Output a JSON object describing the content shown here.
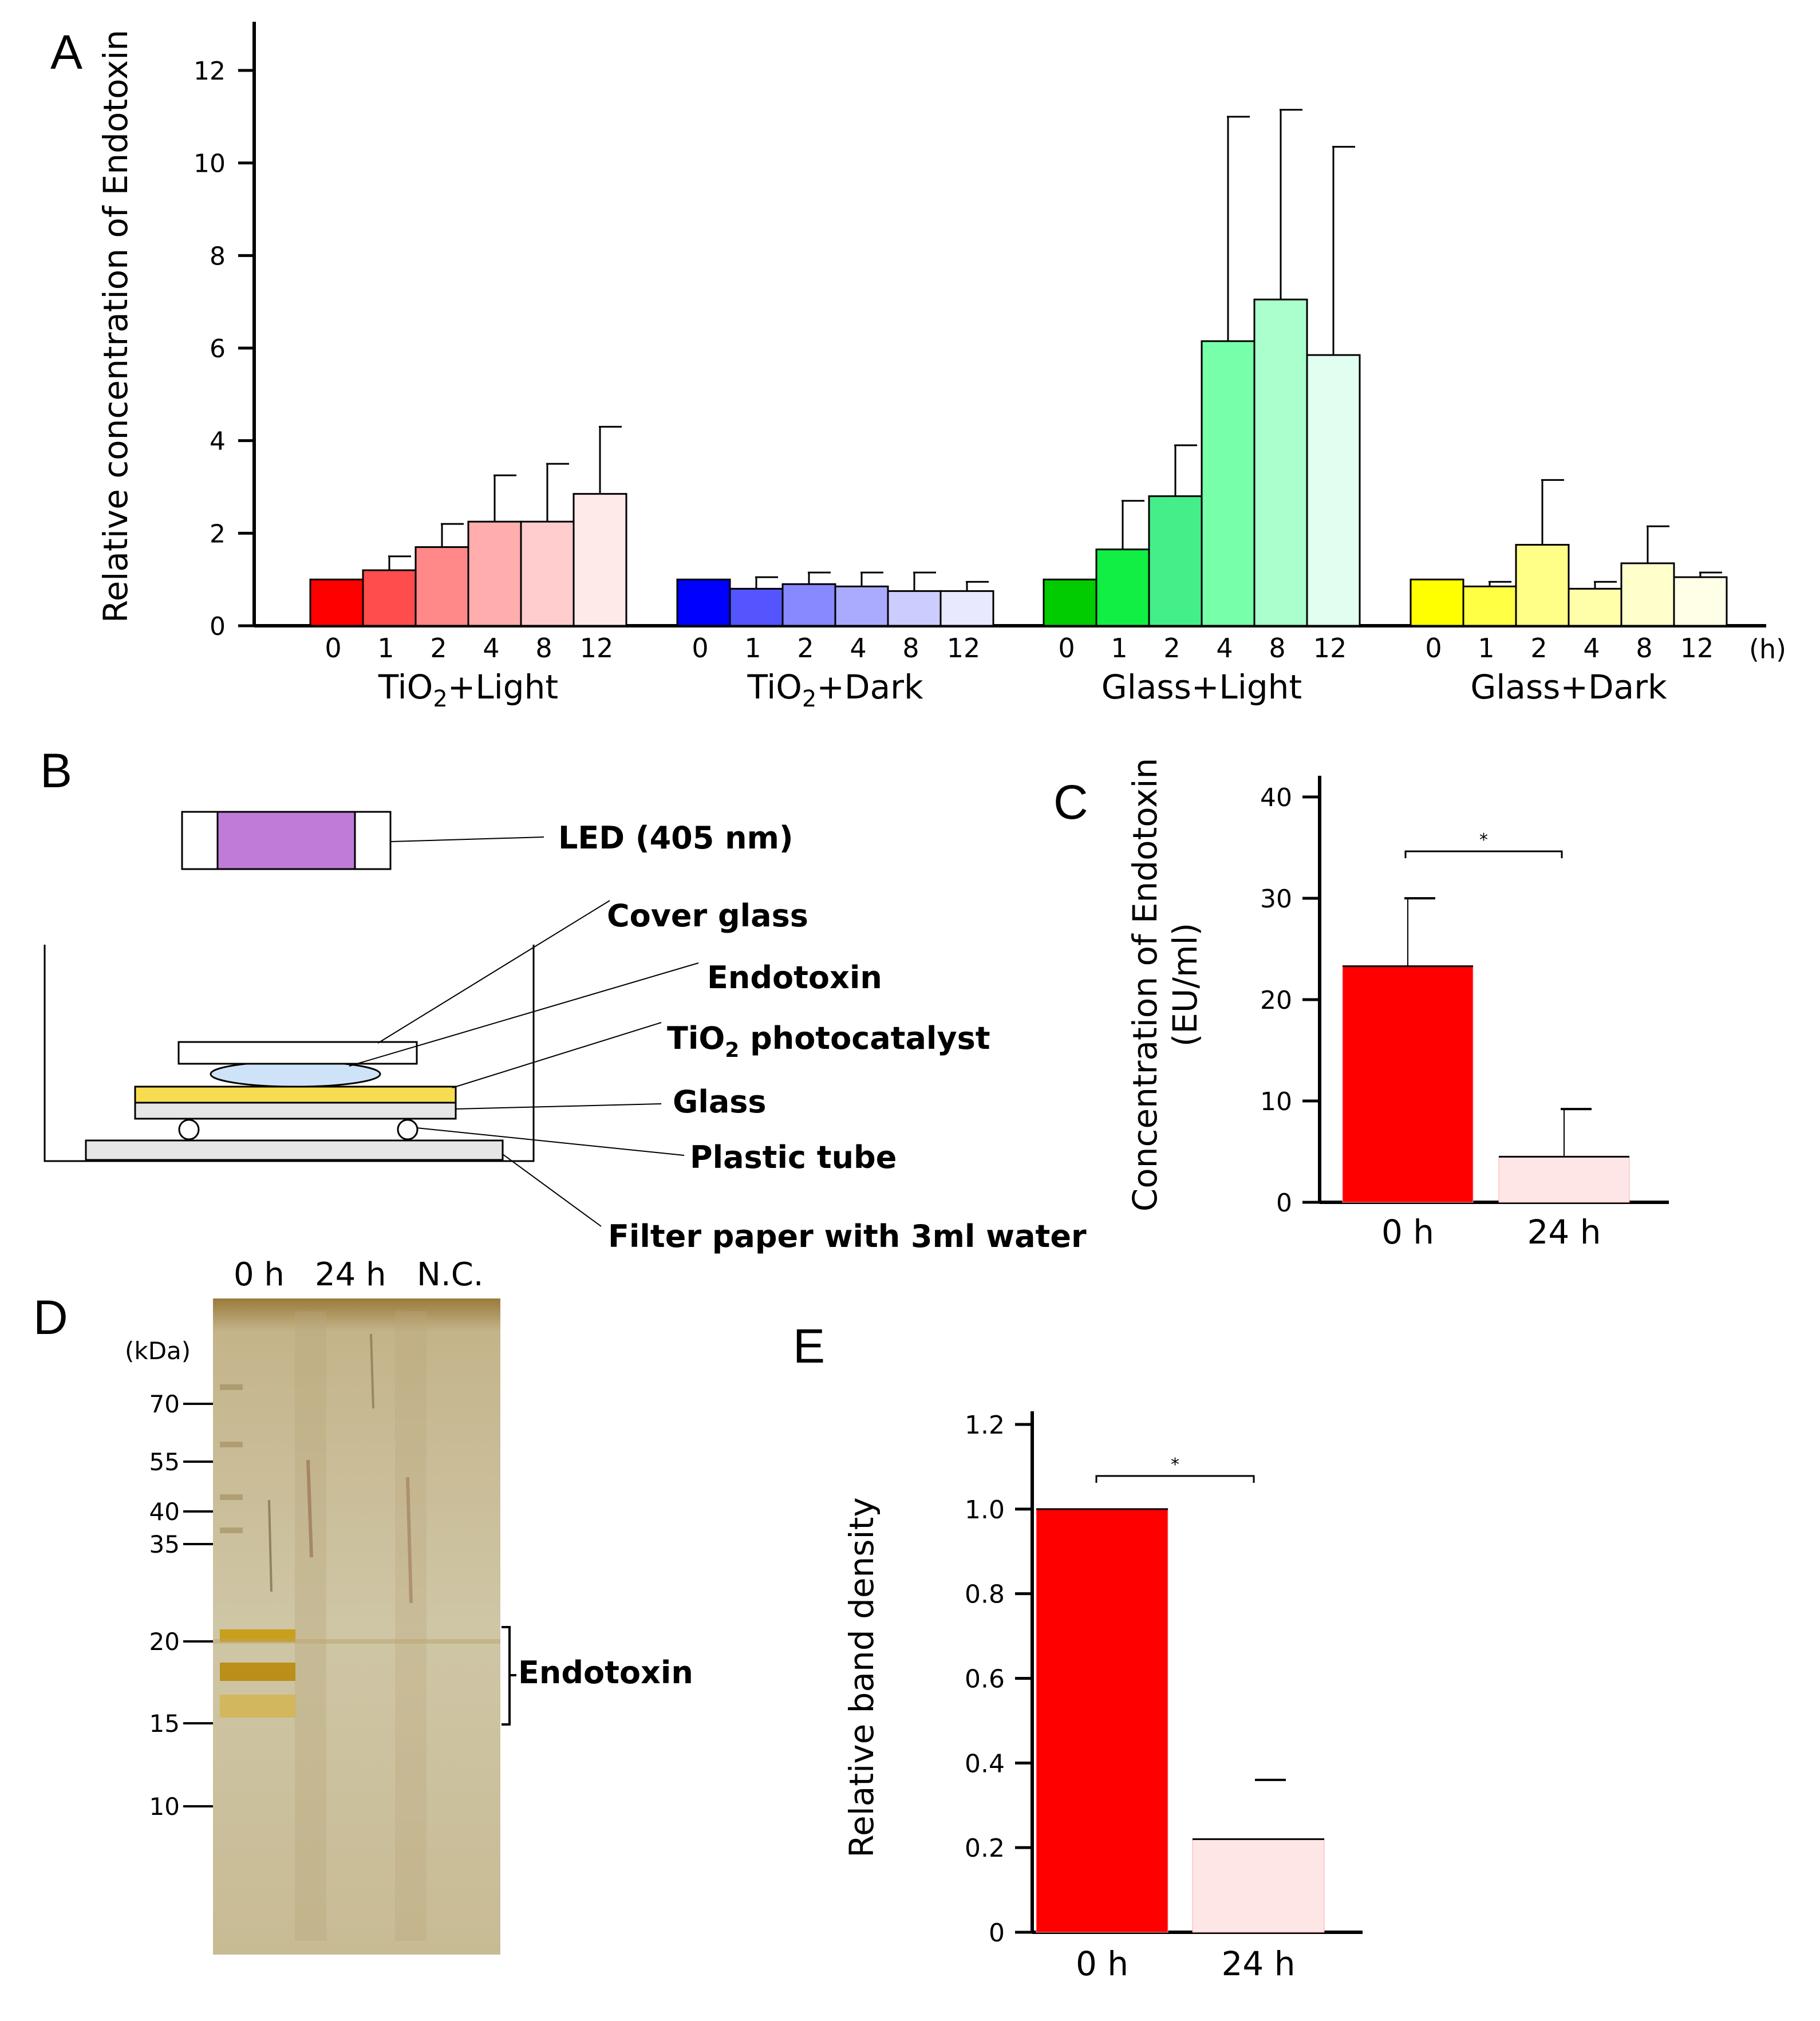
{
  "panels": {
    "a": "A",
    "b": "B",
    "c": "C",
    "d": "D",
    "e": "E"
  },
  "chart_data": [
    {
      "id": "A",
      "type": "bar",
      "ylabel": "Relative concentration of Endotoxin",
      "ylim": [
        0,
        13
      ],
      "yticks": [
        0,
        2,
        4,
        6,
        8,
        10,
        12
      ],
      "x_unit": "(h)",
      "categories": [
        "0",
        "1",
        "2",
        "4",
        "8",
        "12"
      ],
      "groups": [
        {
          "name": "TiO2+Light",
          "name_main": "TiO",
          "name_sub": "2",
          "name_rest": "+Light",
          "values": [
            1.0,
            1.2,
            1.7,
            2.25,
            2.25,
            2.85
          ],
          "errors": [
            0,
            0.3,
            0.5,
            1.0,
            1.25,
            1.45
          ],
          "colors": [
            "#ff0000",
            "#ff4c4c",
            "#ff8888",
            "#ffadad",
            "#ffcdcd",
            "#ffeaea"
          ]
        },
        {
          "name": "TiO2+Dark",
          "name_main": "TiO",
          "name_sub": "2",
          "name_rest": "+Dark",
          "values": [
            1.0,
            0.8,
            0.9,
            0.85,
            0.75,
            0.75
          ],
          "errors": [
            0,
            0.25,
            0.25,
            0.3,
            0.4,
            0.2
          ],
          "colors": [
            "#0000ff",
            "#5555ff",
            "#8888ff",
            "#aaaaff",
            "#ccccff",
            "#e8e8ff"
          ]
        },
        {
          "name": "Glass+Light",
          "name_main": "Glass+Light",
          "name_sub": "",
          "name_rest": "",
          "values": [
            1.0,
            1.65,
            2.8,
            6.15,
            7.05,
            5.85
          ],
          "errors": [
            0,
            1.05,
            1.1,
            4.85,
            4.1,
            4.5
          ],
          "colors": [
            "#00cc00",
            "#11ee44",
            "#44ee88",
            "#77ffaa",
            "#aaffcc",
            "#e0fff0"
          ]
        },
        {
          "name": "Glass+Dark",
          "name_main": "Glass+Dark",
          "name_sub": "",
          "name_rest": "",
          "values": [
            1.0,
            0.85,
            1.75,
            0.8,
            1.35,
            1.05
          ],
          "errors": [
            0,
            0.1,
            1.4,
            0.15,
            0.8,
            0.1
          ],
          "colors": [
            "#ffff00",
            "#ffff44",
            "#ffff88",
            "#ffffaa",
            "#ffffcc",
            "#ffffe8"
          ]
        }
      ]
    },
    {
      "id": "C",
      "type": "bar",
      "ylabel": "Concentration of Endotoxin",
      "ylabel2": "(EU/ml)",
      "ylim": [
        0,
        40
      ],
      "yticks": [
        0,
        10,
        20,
        30,
        40
      ],
      "categories": [
        "0 h",
        "24 h"
      ],
      "values": [
        23.3,
        4.5
      ],
      "errors": [
        6.7,
        4.7
      ],
      "colors": [
        "#ff0000",
        "#ffe6e6"
      ],
      "significance": "*"
    },
    {
      "id": "E",
      "type": "bar",
      "ylabel": "Relative band density",
      "ylim": [
        0,
        1.2
      ],
      "yticks": [
        0,
        0.2,
        0.4,
        0.6,
        0.8,
        1.0,
        1.2
      ],
      "ytick_labels": [
        "0",
        "0.2",
        "0.4",
        "0.6",
        "0.8",
        "1.0",
        "1.2"
      ],
      "categories": [
        "0 h",
        "24 h"
      ],
      "values": [
        1.0,
        0.22
      ],
      "errors": [
        0,
        0.14
      ],
      "colors": [
        "#ff0000",
        "#ffe6e6"
      ],
      "significance": "*"
    }
  ],
  "diagram": {
    "led": "LED (405 nm)",
    "cover_glass": "Cover glass",
    "endotoxin": "Endotoxin",
    "photocatalyst_main": "TiO",
    "photocatalyst_sub": "2",
    "photocatalyst_rest": " photocatalyst",
    "glass": "Glass",
    "tube": "Plastic tube",
    "filter": "Filter paper with 3ml water",
    "colors": {
      "led": "#c07ad8",
      "tio2": "#f8dc50",
      "drop": "#cfe3f8",
      "filter": "#e6e6e6"
    }
  },
  "gel": {
    "lanes": [
      "0 h",
      "24 h",
      "N.C."
    ],
    "unit": "(kDa)",
    "markers": [
      "70",
      "55",
      "40",
      "35",
      "20",
      "15",
      "10"
    ],
    "band_label": "Endotoxin"
  }
}
